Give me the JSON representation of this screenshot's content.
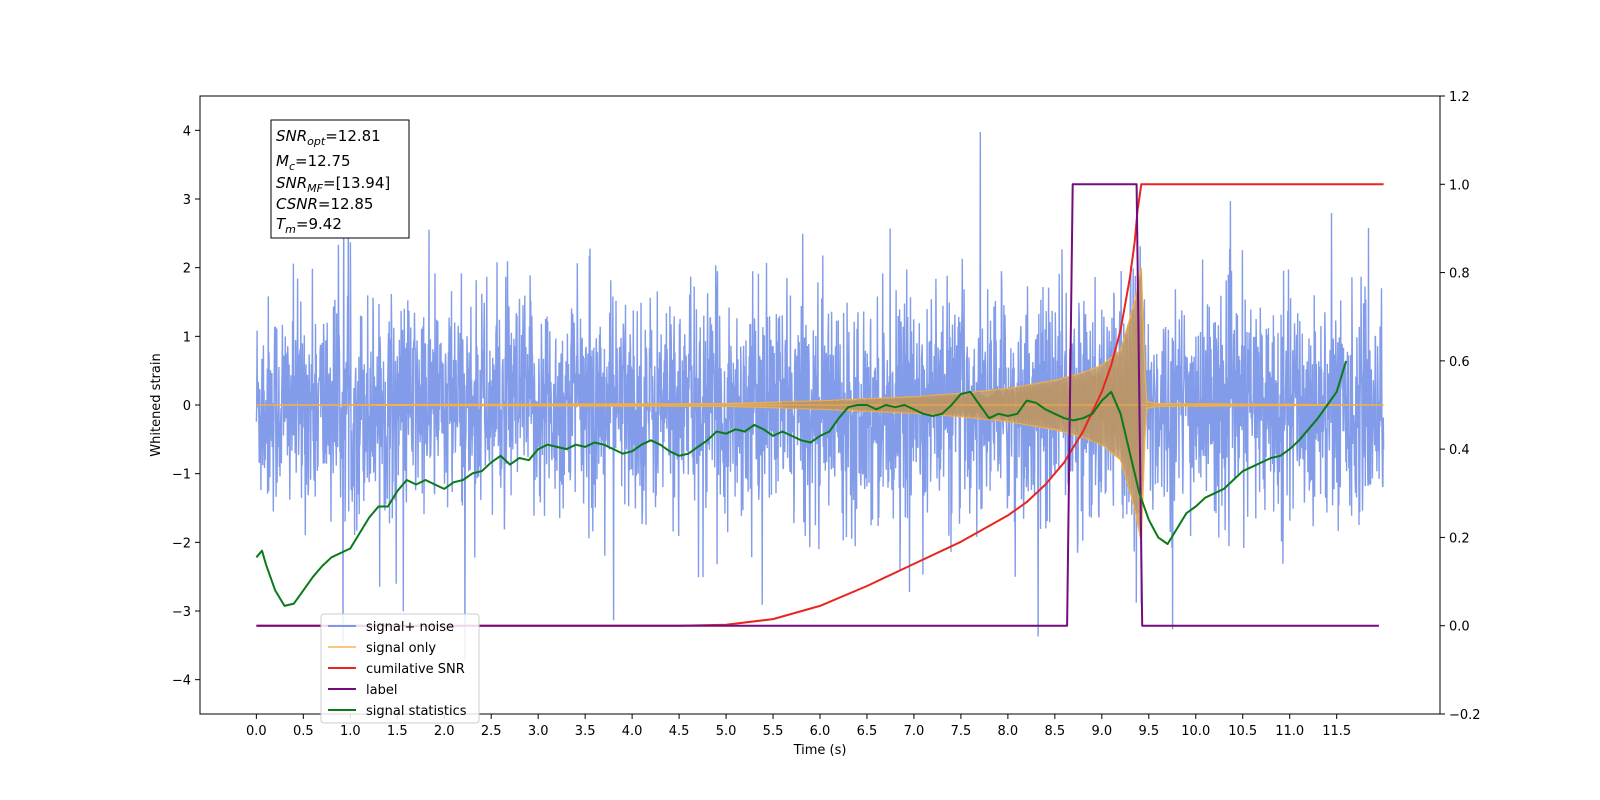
{
  "chart_data": {
    "type": "line",
    "xlabel": "Time (s)",
    "ylabel": "Whitened strain",
    "y2label": "",
    "xlim": [
      -0.6,
      12.6
    ],
    "ylim": [
      -4.5,
      4.5
    ],
    "y2lim": [
      -0.2,
      1.2
    ],
    "x_ticks": [
      0.0,
      0.5,
      1.0,
      1.5,
      2.0,
      2.5,
      3.0,
      3.5,
      4.0,
      4.5,
      5.0,
      5.5,
      6.0,
      6.5,
      7.0,
      7.5,
      8.0,
      8.5,
      9.0,
      9.5,
      10.0,
      10.5,
      11.0,
      11.5
    ],
    "x_tick_labels": [
      "0.0",
      "0.5",
      "1.0",
      "1.5",
      "2.0",
      "2.5",
      "3.0",
      "3.5",
      "4.0",
      "4.5",
      "5.0",
      "5.5",
      "6.0",
      "6.5",
      "7.0",
      "7.5",
      "8.0",
      "8.5",
      "9.0",
      "9.5",
      "10.0",
      "10.5",
      "11.0",
      "11.5"
    ],
    "y_ticks": [
      -4,
      -3,
      -2,
      -1,
      0,
      1,
      2,
      3,
      4
    ],
    "y_tick_labels": [
      "−4",
      "−3",
      "−2",
      "−1",
      "0",
      "1",
      "2",
      "3",
      "4"
    ],
    "y2_ticks": [
      -0.2,
      0.0,
      0.2,
      0.4,
      0.6,
      0.8,
      1.0,
      1.2
    ],
    "y2_tick_labels": [
      "−0.2",
      "0.0",
      "0.2",
      "0.4",
      "0.6",
      "0.8",
      "1.0",
      "1.2"
    ],
    "grid": false,
    "legend_position": "lower-left",
    "stats_box": {
      "snr_opt": {
        "main": "SNR",
        "sub": "opt",
        "value": "=12.81"
      },
      "mc": {
        "main": "M",
        "sub": "c",
        "value": "=12.75"
      },
      "snr_mf": {
        "main": "SNR",
        "sub": "MF",
        "value": "=[13.94]"
      },
      "csnr": {
        "main": "CSNR",
        "value": "=12.85"
      },
      "tm": {
        "main": "T",
        "sub": "m",
        "value": "=9.42"
      }
    },
    "series": [
      {
        "name": "signal+ noise",
        "axis": "left",
        "color": "#7b97e8",
        "kind": "noise",
        "x_range": [
          0.0,
          12.0
        ],
        "typical_amplitude": 1.6,
        "min": -3.9,
        "max": 4.1
      },
      {
        "name": "signal only",
        "axis": "left",
        "color": "#f5b041",
        "kind": "chirp",
        "x_range": [
          0.0,
          12.0
        ],
        "merger_time": 9.42,
        "envelope": [
          [
            0.0,
            0.0
          ],
          [
            5.0,
            0.02
          ],
          [
            6.0,
            0.06
          ],
          [
            7.0,
            0.12
          ],
          [
            7.5,
            0.17
          ],
          [
            8.0,
            0.24
          ],
          [
            8.5,
            0.36
          ],
          [
            8.8,
            0.47
          ],
          [
            9.0,
            0.58
          ],
          [
            9.2,
            0.8
          ],
          [
            9.35,
            1.5
          ],
          [
            9.42,
            2.0
          ],
          [
            9.47,
            0.05
          ],
          [
            9.6,
            0.02
          ],
          [
            12.0,
            0.0
          ]
        ]
      },
      {
        "name": "cumilative SNR",
        "axis": "right",
        "color": "#e8251f",
        "points": [
          [
            0.0,
            0.0
          ],
          [
            4.5,
            0.0
          ],
          [
            5.0,
            0.002
          ],
          [
            5.5,
            0.015
          ],
          [
            6.0,
            0.045
          ],
          [
            6.5,
            0.09
          ],
          [
            7.0,
            0.14
          ],
          [
            7.5,
            0.19
          ],
          [
            8.0,
            0.25
          ],
          [
            8.2,
            0.28
          ],
          [
            8.4,
            0.32
          ],
          [
            8.6,
            0.37
          ],
          [
            8.8,
            0.44
          ],
          [
            9.0,
            0.53
          ],
          [
            9.1,
            0.59
          ],
          [
            9.2,
            0.67
          ],
          [
            9.3,
            0.79
          ],
          [
            9.35,
            0.87
          ],
          [
            9.38,
            0.94
          ],
          [
            9.42,
            1.0
          ],
          [
            12.0,
            1.0
          ]
        ]
      },
      {
        "name": "label",
        "axis": "right",
        "color": "#730d7e",
        "points": [
          [
            0.0,
            0.0
          ],
          [
            8.63,
            0.0
          ],
          [
            8.69,
            1.0
          ],
          [
            9.37,
            1.0
          ],
          [
            9.43,
            0.0
          ],
          [
            11.95,
            0.0
          ]
        ]
      },
      {
        "name": "signal statistics",
        "axis": "right",
        "color": "#0b7a1a",
        "points": [
          [
            0.0,
            0.155
          ],
          [
            0.06,
            0.17
          ],
          [
            0.1,
            0.14
          ],
          [
            0.2,
            0.08
          ],
          [
            0.3,
            0.045
          ],
          [
            0.4,
            0.05
          ],
          [
            0.5,
            0.08
          ],
          [
            0.6,
            0.11
          ],
          [
            0.7,
            0.135
          ],
          [
            0.8,
            0.155
          ],
          [
            0.9,
            0.165
          ],
          [
            1.0,
            0.175
          ],
          [
            1.1,
            0.21
          ],
          [
            1.2,
            0.245
          ],
          [
            1.3,
            0.27
          ],
          [
            1.4,
            0.27
          ],
          [
            1.5,
            0.305
          ],
          [
            1.6,
            0.33
          ],
          [
            1.7,
            0.32
          ],
          [
            1.8,
            0.33
          ],
          [
            1.9,
            0.32
          ],
          [
            2.0,
            0.31
          ],
          [
            2.1,
            0.325
          ],
          [
            2.2,
            0.33
          ],
          [
            2.3,
            0.345
          ],
          [
            2.4,
            0.35
          ],
          [
            2.5,
            0.37
          ],
          [
            2.6,
            0.385
          ],
          [
            2.7,
            0.365
          ],
          [
            2.8,
            0.38
          ],
          [
            2.9,
            0.375
          ],
          [
            3.0,
            0.4
          ],
          [
            3.1,
            0.41
          ],
          [
            3.2,
            0.405
          ],
          [
            3.3,
            0.4
          ],
          [
            3.4,
            0.41
          ],
          [
            3.5,
            0.405
          ],
          [
            3.6,
            0.415
          ],
          [
            3.7,
            0.41
          ],
          [
            3.8,
            0.4
          ],
          [
            3.9,
            0.39
          ],
          [
            4.0,
            0.395
          ],
          [
            4.1,
            0.41
          ],
          [
            4.2,
            0.42
          ],
          [
            4.3,
            0.41
          ],
          [
            4.4,
            0.395
          ],
          [
            4.5,
            0.385
          ],
          [
            4.6,
            0.39
          ],
          [
            4.7,
            0.405
          ],
          [
            4.8,
            0.42
          ],
          [
            4.9,
            0.44
          ],
          [
            5.0,
            0.435
          ],
          [
            5.1,
            0.445
          ],
          [
            5.2,
            0.44
          ],
          [
            5.3,
            0.455
          ],
          [
            5.4,
            0.445
          ],
          [
            5.5,
            0.43
          ],
          [
            5.6,
            0.44
          ],
          [
            5.7,
            0.43
          ],
          [
            5.8,
            0.42
          ],
          [
            5.9,
            0.415
          ],
          [
            6.0,
            0.43
          ],
          [
            6.1,
            0.44
          ],
          [
            6.2,
            0.47
          ],
          [
            6.3,
            0.495
          ],
          [
            6.4,
            0.5
          ],
          [
            6.5,
            0.5
          ],
          [
            6.6,
            0.49
          ],
          [
            6.7,
            0.5
          ],
          [
            6.8,
            0.495
          ],
          [
            6.9,
            0.5
          ],
          [
            7.0,
            0.49
          ],
          [
            7.1,
            0.48
          ],
          [
            7.2,
            0.475
          ],
          [
            7.3,
            0.48
          ],
          [
            7.4,
            0.5
          ],
          [
            7.5,
            0.525
          ],
          [
            7.6,
            0.53
          ],
          [
            7.7,
            0.5
          ],
          [
            7.8,
            0.47
          ],
          [
            7.9,
            0.48
          ],
          [
            8.0,
            0.475
          ],
          [
            8.1,
            0.48
          ],
          [
            8.2,
            0.51
          ],
          [
            8.3,
            0.505
          ],
          [
            8.4,
            0.49
          ],
          [
            8.5,
            0.48
          ],
          [
            8.6,
            0.47
          ],
          [
            8.7,
            0.465
          ],
          [
            8.8,
            0.47
          ],
          [
            8.9,
            0.48
          ],
          [
            9.0,
            0.51
          ],
          [
            9.1,
            0.53
          ],
          [
            9.2,
            0.48
          ],
          [
            9.3,
            0.39
          ],
          [
            9.4,
            0.3
          ],
          [
            9.5,
            0.24
          ],
          [
            9.6,
            0.2
          ],
          [
            9.7,
            0.185
          ],
          [
            9.8,
            0.22
          ],
          [
            9.9,
            0.255
          ],
          [
            10.0,
            0.27
          ],
          [
            10.1,
            0.29
          ],
          [
            10.2,
            0.3
          ],
          [
            10.3,
            0.31
          ],
          [
            10.4,
            0.33
          ],
          [
            10.5,
            0.35
          ],
          [
            10.6,
            0.36
          ],
          [
            10.7,
            0.37
          ],
          [
            10.8,
            0.38
          ],
          [
            10.9,
            0.385
          ],
          [
            11.0,
            0.4
          ],
          [
            11.1,
            0.42
          ],
          [
            11.2,
            0.445
          ],
          [
            11.3,
            0.47
          ],
          [
            11.4,
            0.5
          ],
          [
            11.5,
            0.53
          ],
          [
            11.6,
            0.6
          ]
        ]
      }
    ]
  }
}
